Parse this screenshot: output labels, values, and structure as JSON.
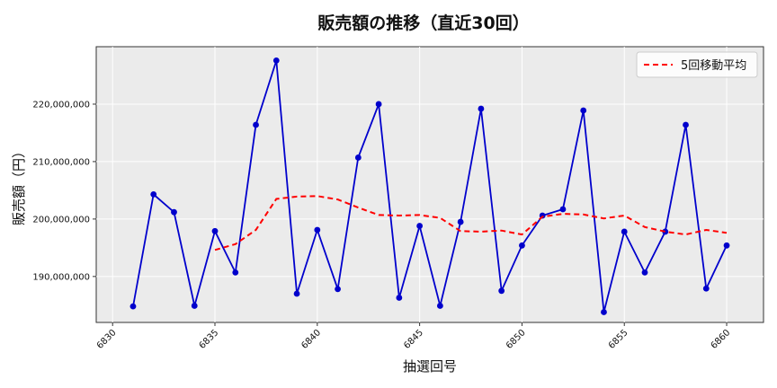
{
  "chart_data": {
    "type": "line",
    "title": "販売額の推移（直近30回）",
    "xlabel": "抽選回号",
    "ylabel": "販売額（円）",
    "xlim": [
      6829.2,
      6861.8
    ],
    "ylim": [
      182000000,
      230000000
    ],
    "grid": true,
    "legend_position": "top-right",
    "x_ticks": [
      6830,
      6835,
      6840,
      6845,
      6850,
      6855,
      6860
    ],
    "y_ticks": [
      190000000,
      200000000,
      210000000,
      220000000
    ],
    "y_tick_labels": [
      "190,000,000",
      "200,000,000",
      "210,000,000",
      "220,000,000"
    ],
    "x": [
      6831,
      6832,
      6833,
      6834,
      6835,
      6836,
      6837,
      6838,
      6839,
      6840,
      6841,
      6842,
      6843,
      6844,
      6845,
      6846,
      6847,
      6848,
      6849,
      6850,
      6851,
      6852,
      6853,
      6854,
      6855,
      6856,
      6857,
      6858,
      6859,
      6860
    ],
    "series": [
      {
        "values": [
          184800000,
          204300000,
          201200000,
          184900000,
          197900000,
          190700000,
          216400000,
          227600000,
          187000000,
          198100000,
          187800000,
          210700000,
          220000000,
          186300000,
          198800000,
          184900000,
          199500000,
          219200000,
          187500000,
          195400000,
          200600000,
          201700000,
          218900000,
          183800000,
          197800000,
          190700000,
          197800000,
          216400000,
          187900000,
          195400000
        ],
        "color": "#0000cc",
        "style": "solid-markers"
      },
      {
        "name": "5回移動平均",
        "x": [
          6835,
          6836,
          6837,
          6838,
          6839,
          6840,
          6841,
          6842,
          6843,
          6844,
          6845,
          6846,
          6847,
          6848,
          6849,
          6850,
          6851,
          6852,
          6853,
          6854,
          6855,
          6856,
          6857,
          6858,
          6859,
          6860
        ],
        "values": [
          194620000,
          195640000,
          198100000,
          203500000,
          203900000,
          204000000,
          203400000,
          202000000,
          200700000,
          200600000,
          200700000,
          200200000,
          197900000,
          197800000,
          198000000,
          197300000,
          200400000,
          200900000,
          200800000,
          200100000,
          200600000,
          198600000,
          197800000,
          197300000,
          198100000,
          197600000
        ],
        "color": "#ff0000",
        "style": "dashed"
      }
    ]
  }
}
